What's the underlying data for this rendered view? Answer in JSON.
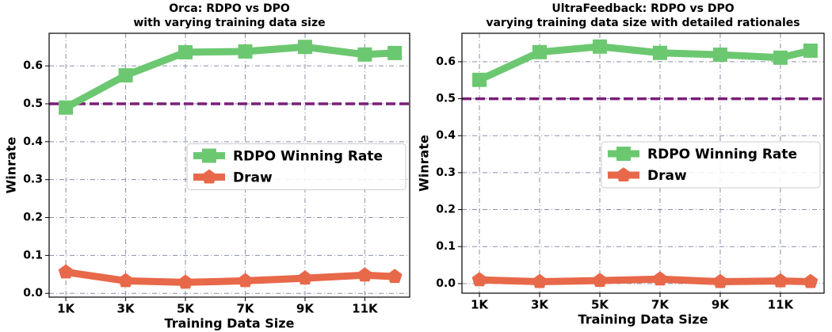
{
  "chart_data": [
    {
      "type": "line",
      "title": "Orca: RDPO vs DPO",
      "subtitle": "with varying training data size",
      "x_label": "Training Data Size",
      "y_label": "Winrate",
      "x": [
        1,
        3,
        5,
        7,
        9,
        11,
        12
      ],
      "series": [
        {
          "name": "RDPO Winning Rate",
          "color": "#6cc870",
          "marker": "square",
          "values": [
            0.49,
            0.575,
            0.636,
            0.638,
            0.65,
            0.63,
            0.634
          ]
        },
        {
          "name": "Draw",
          "color": "#e8684a",
          "marker": "pentagon",
          "values": [
            0.056,
            0.033,
            0.029,
            0.033,
            0.04,
            0.048,
            0.044
          ]
        }
      ],
      "hline": {
        "value": 0.5,
        "color": "#7b1e7a"
      },
      "xlim": [
        0.44,
        12.5
      ],
      "ylim": [
        -0.01,
        0.686
      ],
      "xticks": [
        {
          "value": 1,
          "label": "1K"
        },
        {
          "value": 3,
          "label": "3K"
        },
        {
          "value": 5,
          "label": "5K"
        },
        {
          "value": 7,
          "label": "7K"
        },
        {
          "value": 9,
          "label": "9K"
        },
        {
          "value": 11,
          "label": "11K"
        }
      ],
      "yticks": [
        {
          "value": 0,
          "label": "0.0"
        },
        0.1,
        0.2,
        0.3,
        0.4,
        0.5,
        0.6
      ],
      "grid": true,
      "legend": "center right"
    },
    {
      "type": "line",
      "title": "UltraFeedback: RDPO vs DPO",
      "subtitle": "varying training data size with detailed rationales",
      "x_label": "Training Data Size",
      "y_label": "Winrate",
      "x": [
        1,
        3,
        5,
        7,
        9,
        11,
        12
      ],
      "series": [
        {
          "name": "RDPO Winning Rate",
          "color": "#6cc870",
          "marker": "square",
          "values": [
            0.551,
            0.626,
            0.641,
            0.624,
            0.619,
            0.611,
            0.63
          ]
        },
        {
          "name": "Draw",
          "color": "#e8684a",
          "marker": "pentagon",
          "values": [
            0.01,
            0.005,
            0.008,
            0.012,
            0.005,
            0.007,
            0.005
          ]
        }
      ],
      "hline": {
        "value": 0.5,
        "color": "#7b1e7a"
      },
      "xlim": [
        0.42,
        12.45
      ],
      "ylim": [
        -0.026,
        0.677
      ],
      "xticks": [
        {
          "value": 1,
          "label": "1K"
        },
        {
          "value": 3,
          "label": "3K"
        },
        {
          "value": 5,
          "label": "5K"
        },
        {
          "value": 7,
          "label": "7K"
        },
        {
          "value": 9,
          "label": "9K"
        },
        {
          "value": 11,
          "label": "11K"
        }
      ],
      "yticks": [
        {
          "value": 0,
          "label": "0.0"
        },
        0.1,
        0.2,
        0.3,
        0.4,
        0.5,
        0.6
      ],
      "grid": true,
      "legend": "center right"
    }
  ]
}
